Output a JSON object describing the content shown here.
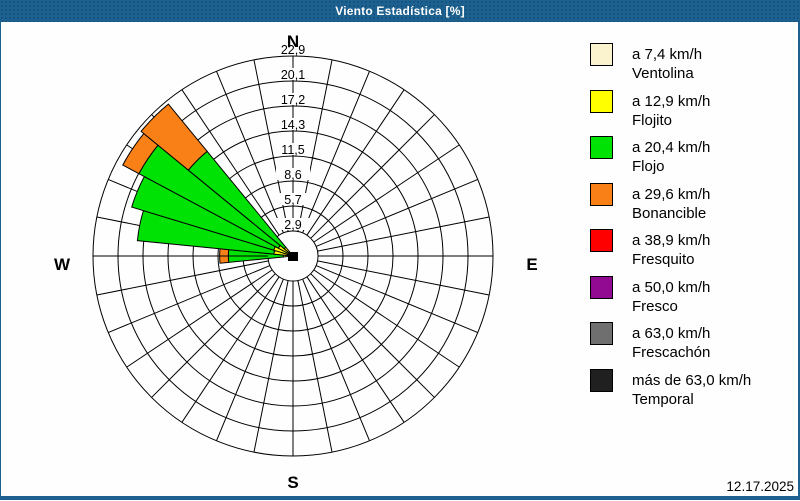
{
  "window": {
    "title": "Viento Estadística [%]",
    "status_date": "12.17.2025"
  },
  "chart_data": {
    "type": "bar",
    "subtype": "wind-rose-polar-stacked",
    "title": "Viento Estadística [%]",
    "units": "%",
    "rmax": 22.9,
    "num_spokes": 32,
    "grid": true,
    "ring_values": [
      2.9,
      5.7,
      8.6,
      11.5,
      14.3,
      17.2,
      20.1,
      22.9
    ],
    "ring_labels": [
      "2,9",
      "5,7",
      "8,6",
      "11,5",
      "14,3",
      "17,2",
      "20,1",
      "22,9"
    ],
    "cardinal_labels": {
      "n": "N",
      "e": "E",
      "s": "S",
      "w": "W"
    },
    "categories": [
      {
        "name": "Ventolina",
        "color": "#faf3ce"
      },
      {
        "name": "Flojito",
        "color": "#ffff00"
      },
      {
        "name": "Flojo",
        "color": "#00e203"
      },
      {
        "name": "Bonancible",
        "color": "#f88017"
      },
      {
        "name": "Fresquito",
        "color": "#ff0000"
      },
      {
        "name": "Fresco",
        "color": "#920992"
      },
      {
        "name": "Frescachón",
        "color": "#6f6f6f"
      },
      {
        "name": "Temporal",
        "color": "#202020"
      }
    ],
    "series": [
      {
        "direction_deg": 270.0,
        "compass": "W",
        "values": [
          0.2,
          0.9,
          6.3,
          1.0,
          0,
          0,
          0,
          0
        ]
      },
      {
        "direction_deg": 281.25,
        "compass": "WbN",
        "values": [
          0.3,
          1.9,
          15.7,
          0,
          0,
          0,
          0,
          0
        ]
      },
      {
        "direction_deg": 292.5,
        "compass": "WNW",
        "values": [
          0.3,
          2.0,
          17.0,
          0,
          0,
          0,
          0,
          0
        ]
      },
      {
        "direction_deg": 303.75,
        "compass": "NWbW",
        "values": [
          0.3,
          1.6,
          18.1,
          2.1,
          0,
          0,
          0,
          0
        ]
      },
      {
        "direction_deg": 315.0,
        "compass": "NW",
        "values": [
          0.3,
          1.0,
          14.2,
          7.0,
          0,
          0,
          0,
          0
        ]
      }
    ]
  },
  "legend": {
    "items": [
      {
        "speed": "a 7,4 km/h",
        "name": "Ventolina",
        "color": "#faf3ce"
      },
      {
        "speed": "a 12,9 km/h",
        "name": "Flojito",
        "color": "#ffff00"
      },
      {
        "speed": "a 20,4 km/h",
        "name": "Flojo",
        "color": "#00e203"
      },
      {
        "speed": "a 29,6 km/h",
        "name": "Bonancible",
        "color": "#f88017"
      },
      {
        "speed": "a 38,9 km/h",
        "name": "Fresquito",
        "color": "#ff0000"
      },
      {
        "speed": "a 50,0 km/h",
        "name": "Fresco",
        "color": "#920992"
      },
      {
        "speed": "a 63,0 km/h",
        "name": "Frescachón",
        "color": "#6f6f6f"
      },
      {
        "speed": "más de 63,0 km/h",
        "name": "Temporal",
        "color": "#202020"
      }
    ]
  }
}
